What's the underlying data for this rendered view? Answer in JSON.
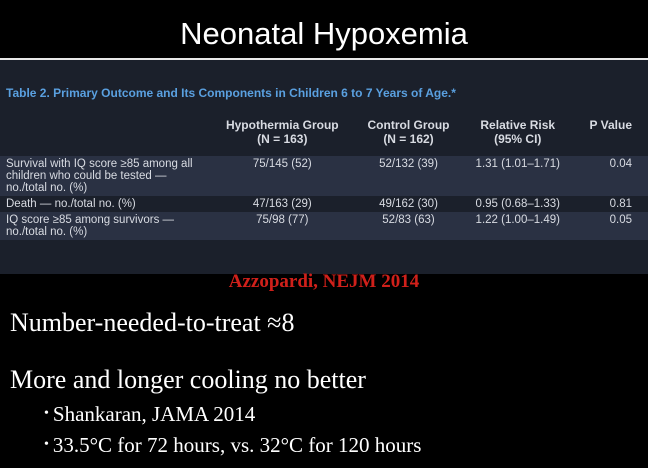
{
  "title": "Neonatal Hypoxemia",
  "table": {
    "caption": "Table 2. Primary Outcome and Its Components in Children 6 to 7 Years of Age.*",
    "header": [
      [
        ""
      ],
      [
        "Hypothermia Group",
        "(N = 163)"
      ],
      [
        "Control Group",
        "(N = 162)"
      ],
      [
        "Relative Risk",
        "(95% CI)"
      ],
      [
        "P Value"
      ]
    ],
    "rows": [
      [
        "Survival with IQ score ≥85 among all children who could be tested — no./total no. (%)",
        "75/145 (52)",
        "52/132 (39)",
        "1.31 (1.01–1.71)",
        "0.04"
      ],
      [
        "Death — no./total no. (%)",
        "47/163 (29)",
        "49/162 (30)",
        "0.95 (0.68–1.33)",
        "0.81"
      ],
      [
        "IQ score ≥85 among survivors — no./total no. (%)",
        "75/98 (77)",
        "52/83 (63)",
        "1.22 (1.00–1.49)",
        "0.05"
      ]
    ]
  },
  "citation": "Azzopardi, NEJM 2014",
  "lines": [
    "Number-needed-to-treat ≈8",
    "More and longer cooling no better"
  ],
  "bullets": [
    "Shankaran, JAMA 2014",
    "33.5°C for 72 hours, vs. 32°C for 120 hours"
  ]
}
